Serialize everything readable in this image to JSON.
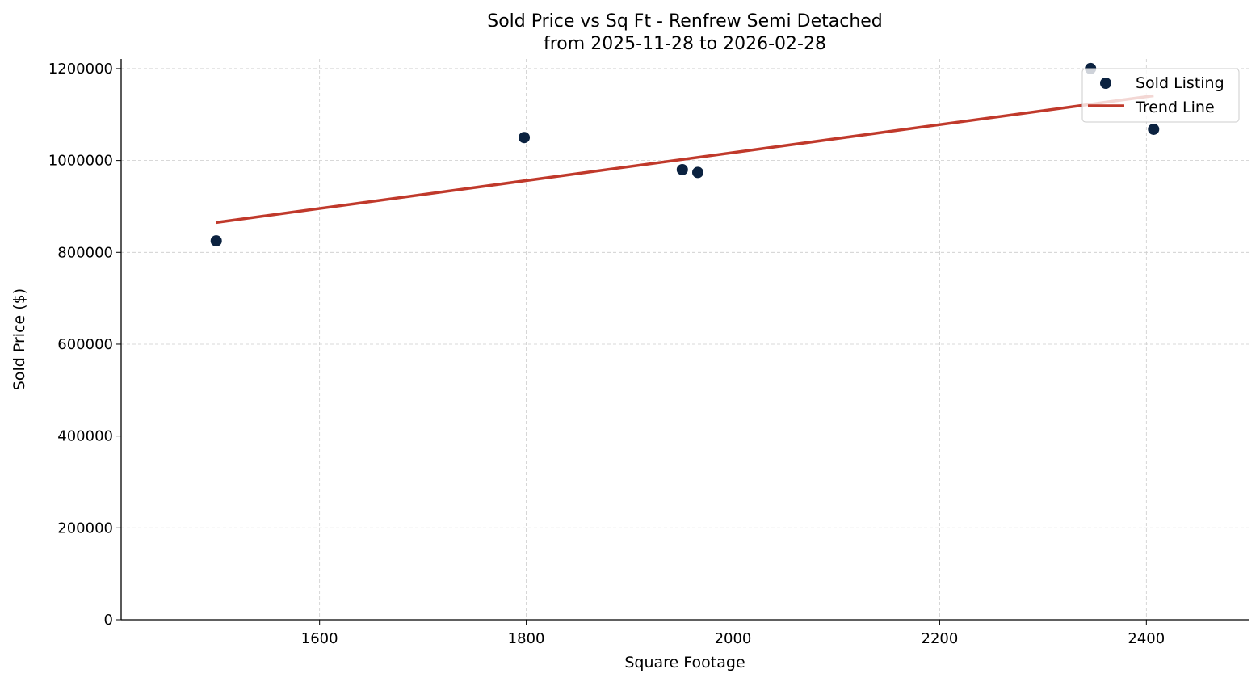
{
  "chart_data": {
    "type": "scatter",
    "title": "Sold Price vs Sq Ft - Renfrew Semi Detached",
    "subtitle": "from 2025-11-28 to 2026-02-28",
    "xlabel": "Square Footage",
    "ylabel": "Sold Price ($)",
    "xlim": [
      1408,
      2499
    ],
    "ylim": [
      0,
      1221000
    ],
    "xticks": [
      1600,
      1800,
      2000,
      2200,
      2400
    ],
    "yticks": [
      0,
      200000,
      400000,
      600000,
      800000,
      1000000,
      1200000
    ],
    "grid": true,
    "legend_position": "top-right",
    "series": [
      {
        "name": "Sold Listing",
        "type": "scatter",
        "color": "#0b2240",
        "points": [
          {
            "x": 1500,
            "y": 825000
          },
          {
            "x": 1798,
            "y": 1050000
          },
          {
            "x": 1951,
            "y": 980000
          },
          {
            "x": 1966,
            "y": 974000
          },
          {
            "x": 2346,
            "y": 1200000
          },
          {
            "x": 2407,
            "y": 1068000
          }
        ]
      },
      {
        "name": "Trend Line",
        "type": "line",
        "color": "#c0392b",
        "points": [
          {
            "x": 1500,
            "y": 865000
          },
          {
            "x": 2407,
            "y": 1141000
          }
        ]
      }
    ]
  }
}
